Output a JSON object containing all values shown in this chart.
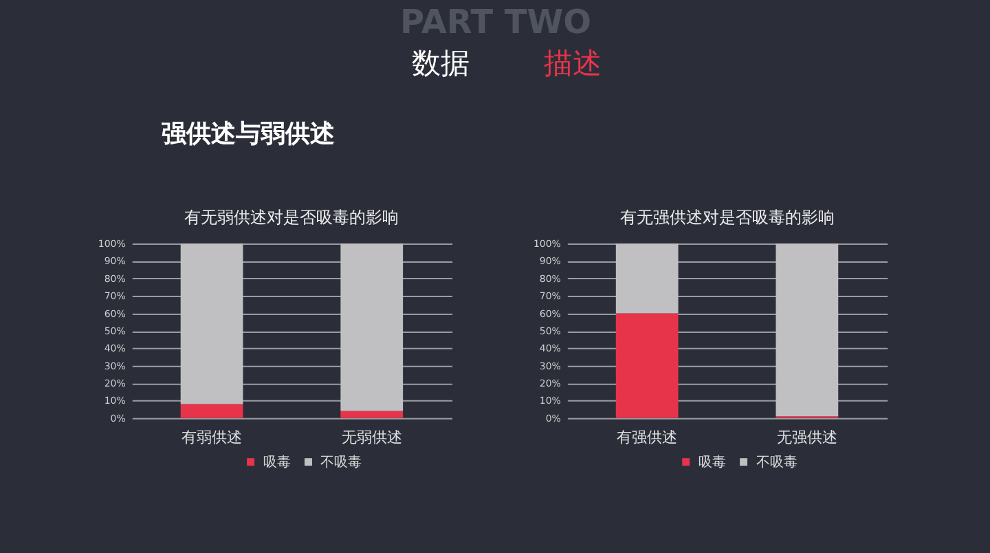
{
  "chart_data": [
    {
      "type": "other",
      "annotations": [
        "PART TWO",
        "数据",
        "描述",
        "强供述与弱供述"
      ]
    },
    {
      "type": "bar",
      "title": "有无弱供述对是否吸毒的影响",
      "categories": [
        "有弱供述",
        "无弱供述"
      ],
      "stacked": true,
      "series": [
        {
          "name": "吸毒",
          "color": "#e8344a",
          "values": [
            8,
            4
          ]
        },
        {
          "name": "不吸毒",
          "color": "#c0c0c2",
          "values": [
            92,
            96
          ]
        }
      ],
      "ylim": [
        0,
        100
      ],
      "yticks": [
        {
          "value": 0,
          "label": "0%"
        },
        {
          "value": 10,
          "label": "10%"
        },
        {
          "value": 20,
          "label": "20%"
        },
        {
          "value": 30,
          "label": "30%"
        },
        {
          "value": 40,
          "label": "40%"
        },
        {
          "value": 50,
          "label": "50%"
        },
        {
          "value": 60,
          "label": "60%"
        },
        {
          "value": 70,
          "label": "70%"
        },
        {
          "value": 80,
          "label": "80%"
        },
        {
          "value": 90,
          "label": "90%"
        },
        {
          "value": 100,
          "label": "100%"
        }
      ],
      "grid": "y",
      "legend": "bottom"
    },
    {
      "type": "bar",
      "title": "有无强供述对是否吸毒的影响",
      "categories": [
        "有强供述",
        "无强供述"
      ],
      "stacked": true,
      "series": [
        {
          "name": "吸毒",
          "color": "#e8344a",
          "values": [
            60,
            1
          ]
        },
        {
          "name": "不吸毒",
          "color": "#c0c0c2",
          "values": [
            40,
            99
          ]
        }
      ],
      "ylim": [
        0,
        100
      ],
      "yticks": [
        {
          "value": 0,
          "label": "0%"
        },
        {
          "value": 10,
          "label": "10%"
        },
        {
          "value": 20,
          "label": "20%"
        },
        {
          "value": 30,
          "label": "30%"
        },
        {
          "value": 40,
          "label": "40%"
        },
        {
          "value": 50,
          "label": "50%"
        },
        {
          "value": 60,
          "label": "60%"
        },
        {
          "value": 70,
          "label": "70%"
        },
        {
          "value": 80,
          "label": "80%"
        },
        {
          "value": 90,
          "label": "90%"
        },
        {
          "value": 100,
          "label": "100%"
        }
      ],
      "grid": "y",
      "legend": "bottom"
    }
  ]
}
